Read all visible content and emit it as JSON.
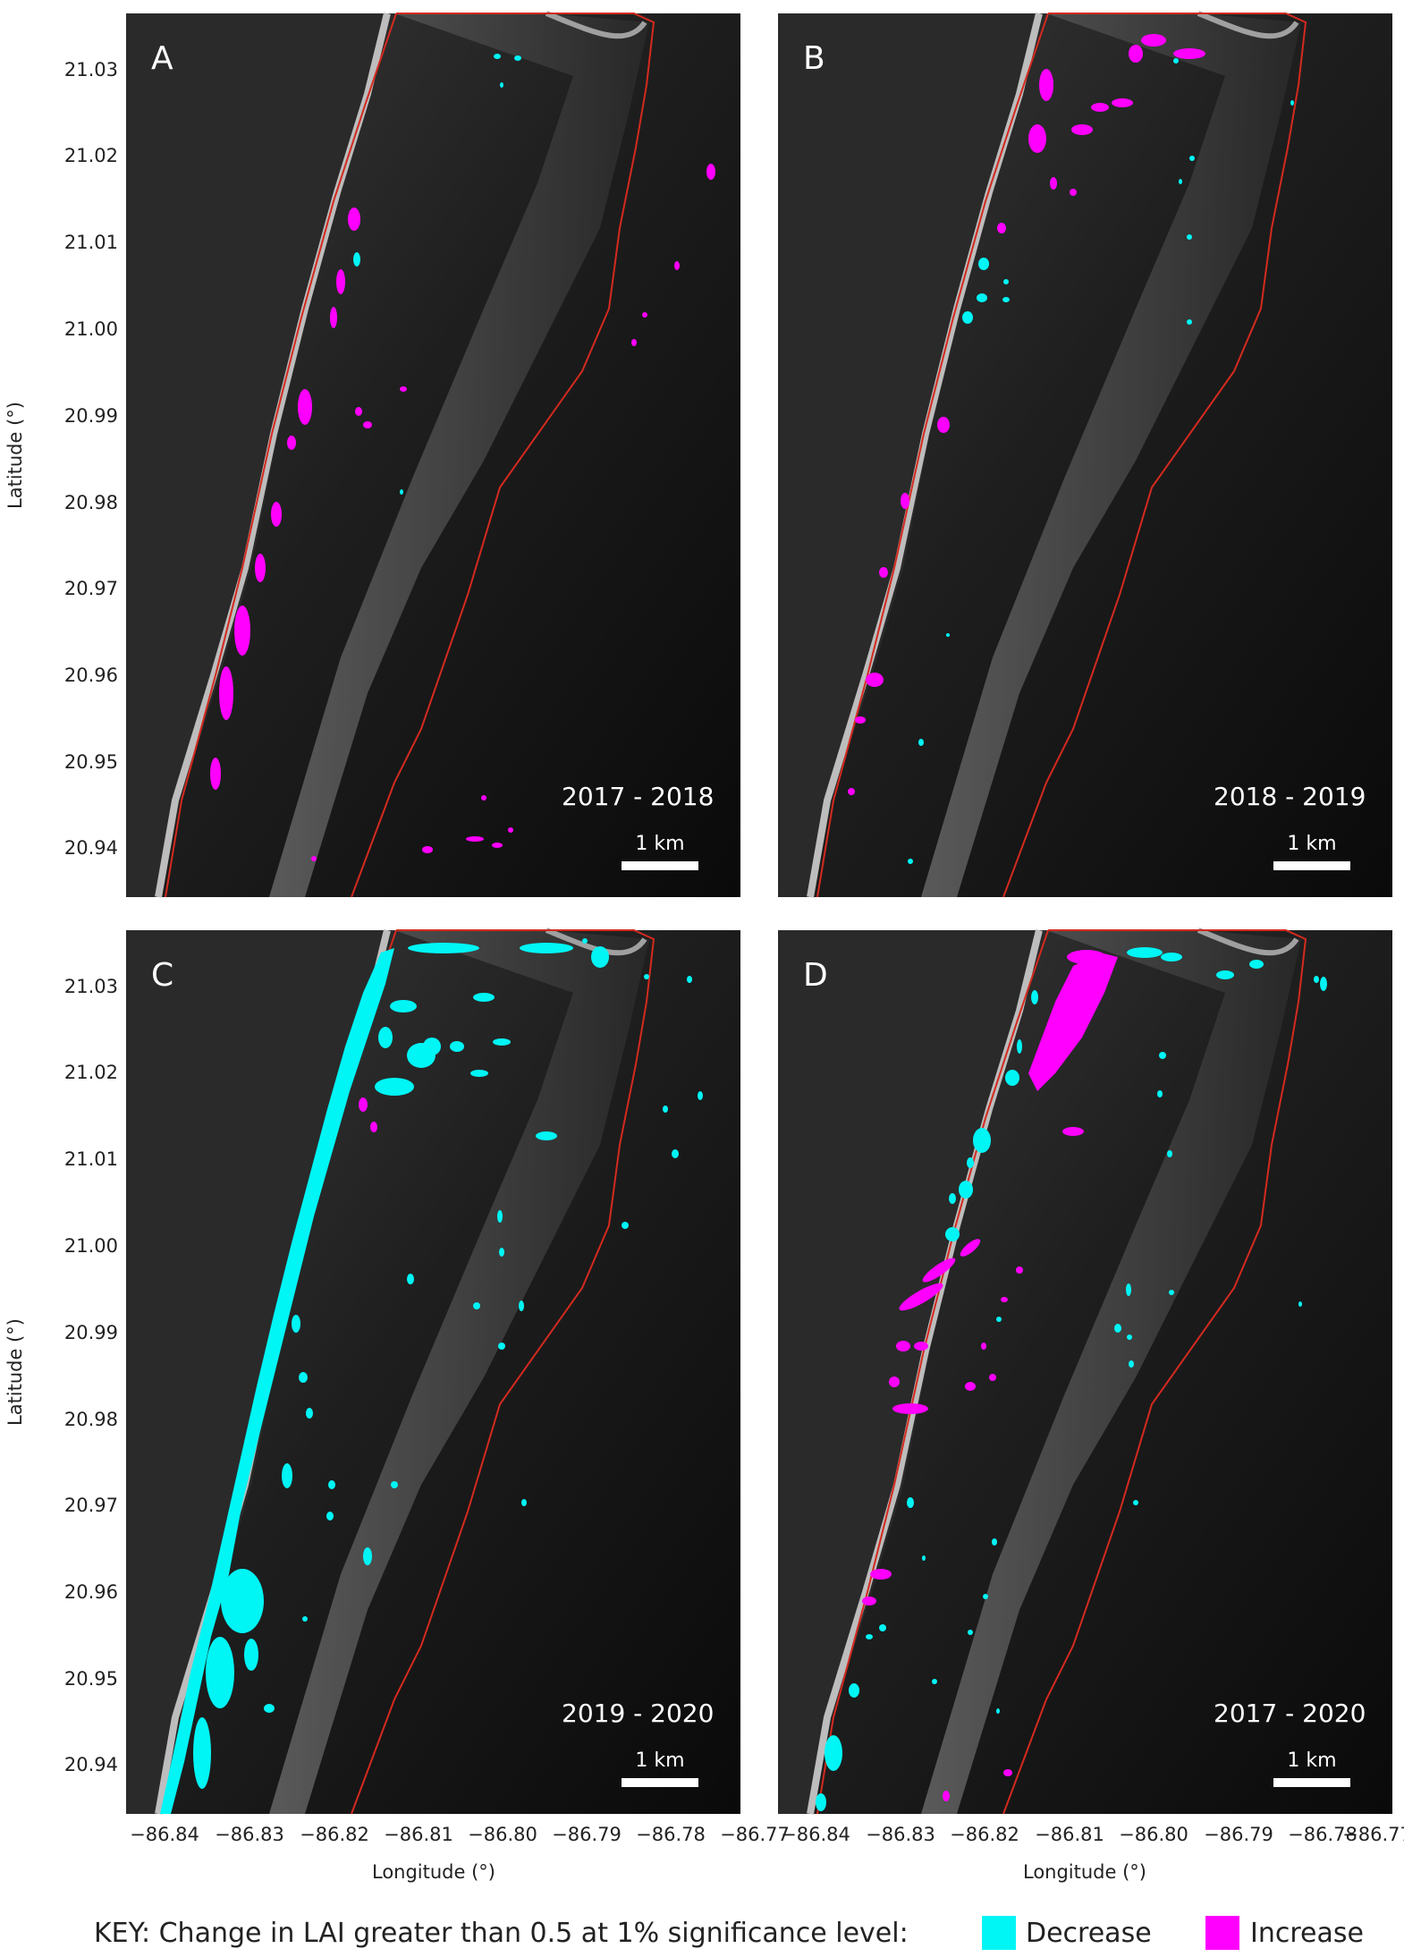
{
  "colors": {
    "decrease": "#00f5f5",
    "increase": "#ff00ff",
    "boundary": "#d42a1f",
    "background": "#0b0b0b"
  },
  "axes": {
    "xlabel": "Longitude (°)",
    "ylabel": "Latitude (°)",
    "x_ticks": [
      "−86.84",
      "−86.83",
      "−86.82",
      "−86.81",
      "−86.80",
      "−86.79",
      "−86.78",
      "−86.77"
    ],
    "y_ticks": [
      "21.03",
      "21.02",
      "21.01",
      "21.00",
      "20.99",
      "20.98",
      "20.97",
      "20.96",
      "20.95",
      "20.94"
    ]
  },
  "panels": [
    {
      "letter": "A",
      "period": "2017 - 2018",
      "scale": "1 km"
    },
    {
      "letter": "B",
      "period": "2018 - 2019",
      "scale": "1 km"
    },
    {
      "letter": "C",
      "period": "2019 - 2020",
      "scale": "1 km"
    },
    {
      "letter": "D",
      "period": "2017 - 2020",
      "scale": "1 km"
    }
  ],
  "key": {
    "prefix": "KEY: Change in LAI greater than 0.5 at 1% significance level:",
    "decrease": "Decrease",
    "increase": "Increase"
  }
}
